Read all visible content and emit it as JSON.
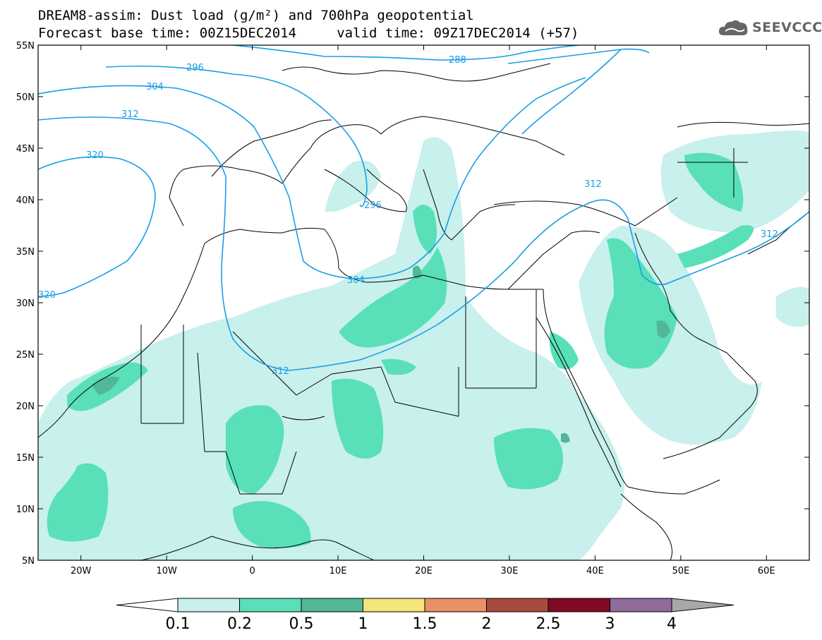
{
  "title": {
    "line1": "DREAM8-assim: Dust load (g/m²) and 700hPa geopotential",
    "line2": "Forecast base time: 00Z15DEC2014     valid time: 09Z17DEC2014 (+57)"
  },
  "logo": {
    "text": "SEEVCCC",
    "icon": "cloud-icon"
  },
  "map": {
    "lon_range": [
      -25,
      65
    ],
    "lat_range": [
      5,
      55
    ],
    "lon_ticks": [
      "20W",
      "10W",
      "0",
      "10E",
      "20E",
      "30E",
      "40E",
      "50E",
      "60E"
    ],
    "lat_ticks": [
      "55N",
      "50N",
      "45N",
      "40N",
      "35N",
      "30N",
      "25N",
      "20N",
      "15N",
      "10N",
      "5N"
    ],
    "contour_labels": [
      "288",
      "296",
      "304",
      "312",
      "320",
      "296",
      "312",
      "304",
      "312",
      "312",
      "320"
    ],
    "contour_color": "#1a9ee6"
  },
  "colorbar": {
    "levels": [
      "0.1",
      "0.2",
      "0.5",
      "1",
      "1.5",
      "2",
      "2.5",
      "3",
      "4"
    ],
    "colors": [
      "#c8f0ec",
      "#59e0b8",
      "#50b896",
      "#f4e57a",
      "#e89167",
      "#a84b3c",
      "#800a23",
      "#8f6c9c"
    ],
    "under_color": "#ffffff",
    "over_color": "#a8a8a8"
  }
}
